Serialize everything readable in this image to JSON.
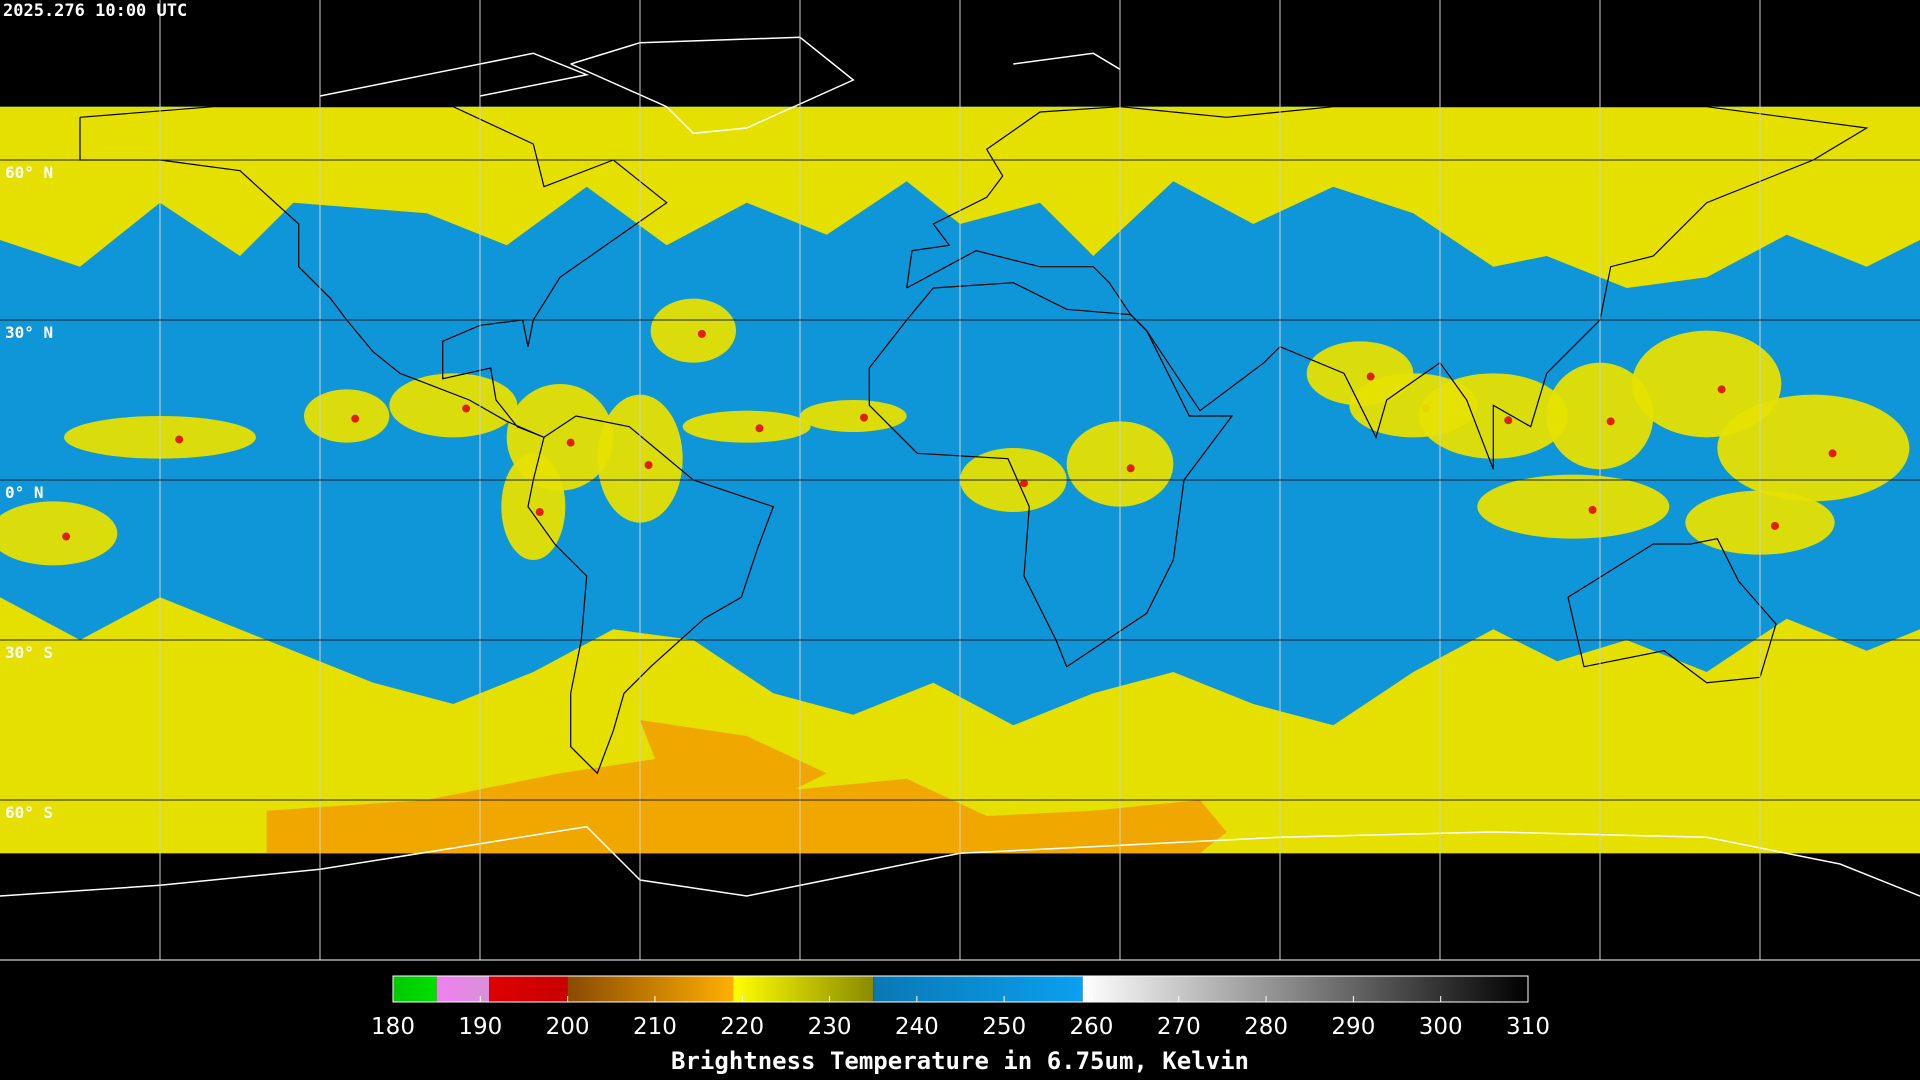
{
  "header": {
    "timestamp": "2025.276 10:00 UTC"
  },
  "map": {
    "latitude_labels": [
      "60° N",
      "30° N",
      "0° N",
      "30° S",
      "60° S"
    ]
  },
  "colorbar": {
    "title": "Brightness Temperature in 6.75um, Kelvin",
    "range": [
      180,
      310
    ],
    "ticks": [
      180,
      190,
      200,
      210,
      220,
      230,
      240,
      250,
      260,
      270,
      280,
      290,
      300,
      310
    ],
    "segments": [
      {
        "from": 180,
        "to": 185,
        "colors": [
          "#00c800",
          "#00e000"
        ]
      },
      {
        "from": 185,
        "to": 191,
        "colors": [
          "#f080f0",
          "#d890d8"
        ]
      },
      {
        "from": 191,
        "to": 200,
        "colors": [
          "#e00000",
          "#c80000"
        ]
      },
      {
        "from": 200,
        "to": 219,
        "colors": [
          "#8a4a00",
          "#ffb000"
        ]
      },
      {
        "from": 219,
        "to": 235,
        "colors": [
          "#ffff00",
          "#8a8a00"
        ]
      },
      {
        "from": 235,
        "to": 259,
        "colors": [
          "#0a78b4",
          "#0aa0f0"
        ]
      },
      {
        "from": 259,
        "to": 310,
        "colors": [
          "#ffffff",
          "#000000"
        ]
      }
    ]
  }
}
